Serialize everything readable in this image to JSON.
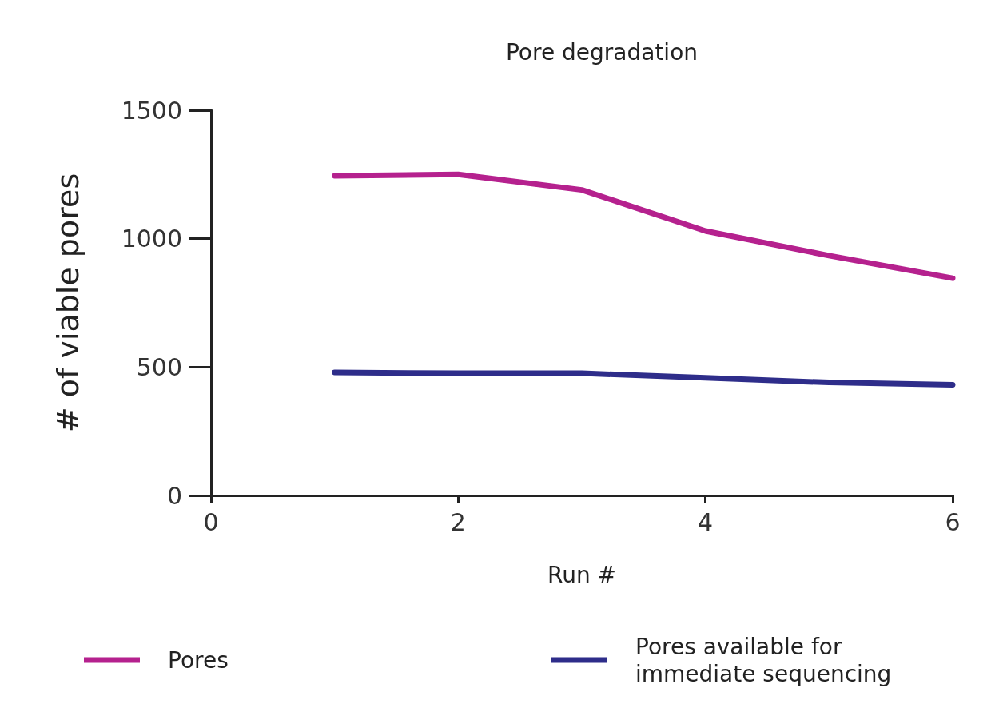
{
  "chart_data": {
    "type": "line",
    "title": "Pore degradation",
    "xlabel": "Run #",
    "ylabel": "# of viable pores",
    "x": [
      1,
      2,
      3,
      4,
      5,
      6
    ],
    "series": [
      {
        "name": "Pores",
        "color": "#b5218e",
        "values": [
          1245,
          1250,
          1190,
          1030,
          934,
          846
        ]
      },
      {
        "name": "Pores available for immediate sequencing",
        "color": "#2e2d8a",
        "values": [
          479,
          476,
          476,
          458,
          440,
          431
        ]
      }
    ],
    "xlim": [
      0,
      6
    ],
    "xticks": [
      0,
      2,
      4,
      6
    ],
    "ylim": [
      0,
      1500
    ],
    "yticks": [
      0,
      500,
      1000,
      1500
    ],
    "grid": false,
    "legend": "bottom",
    "marker": "none",
    "line_style": "solid"
  }
}
